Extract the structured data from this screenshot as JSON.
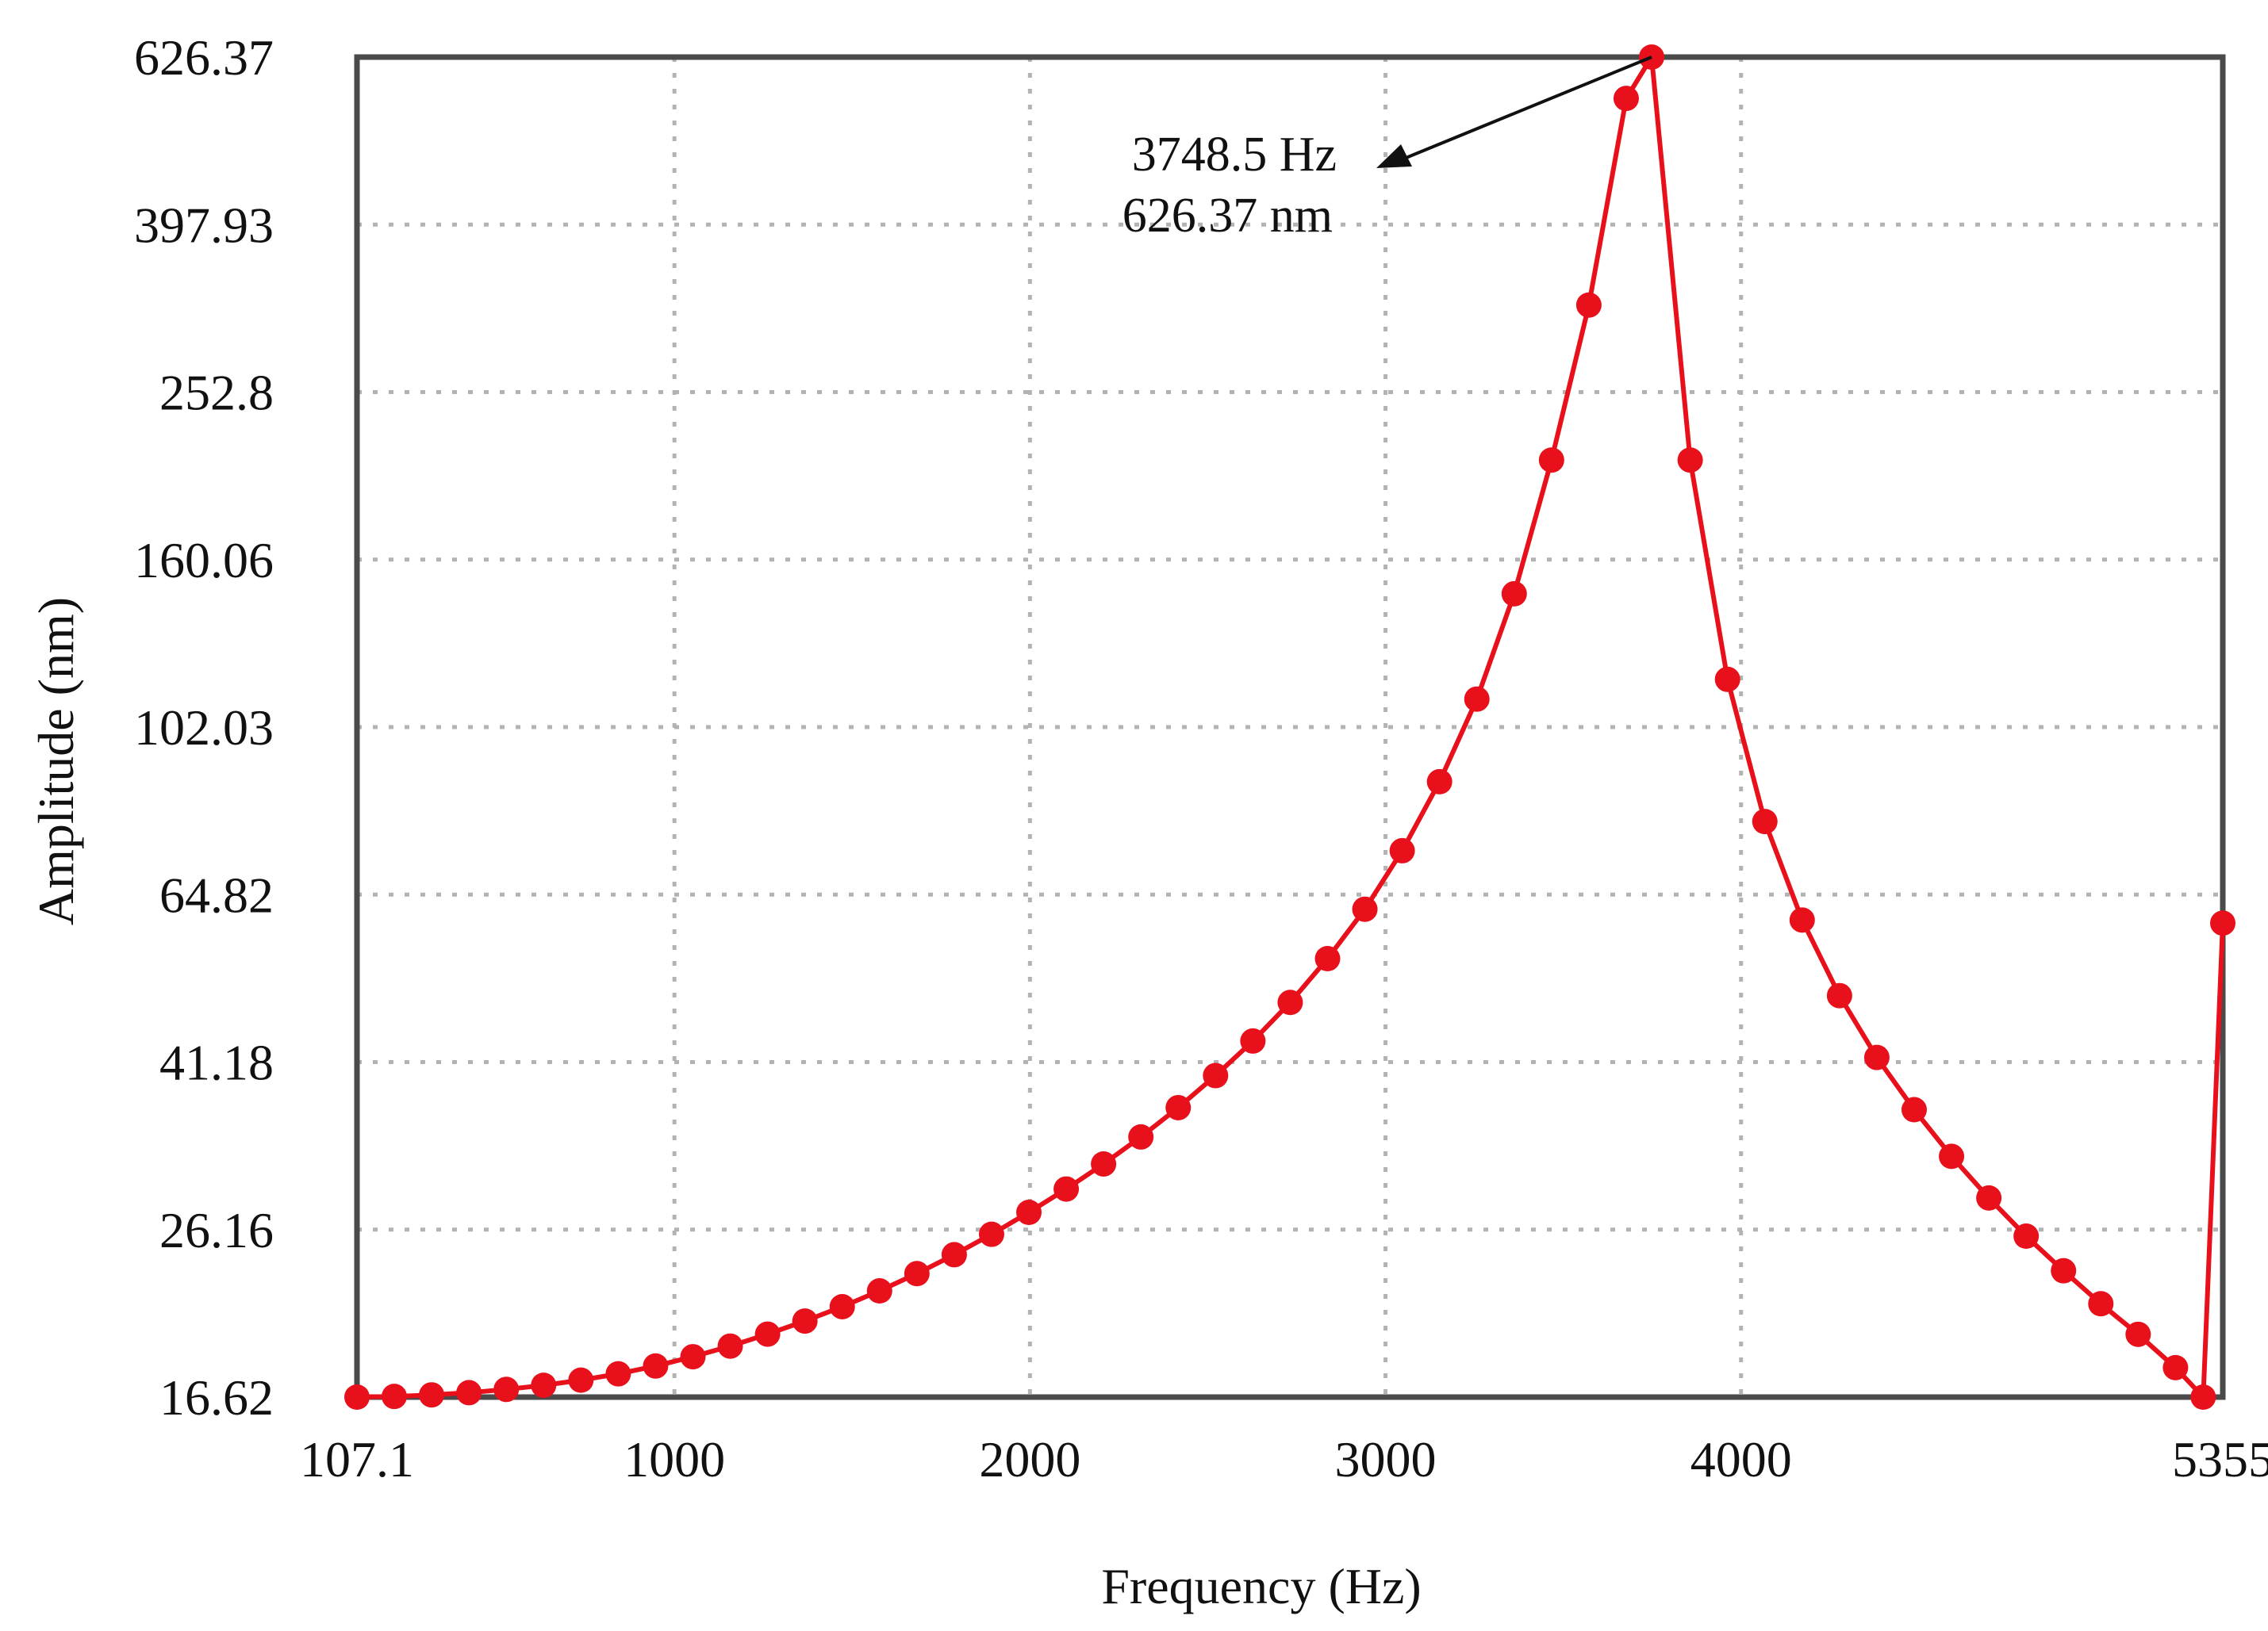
{
  "chart_data": {
    "type": "line",
    "title": "",
    "xlabel": "Frequency (Hz)",
    "ylabel": "Amplitude (nm)",
    "xlim": [
      107.1,
      5355
    ],
    "x_tick_labels": [
      "107.1",
      "1000",
      "2000",
      "3000",
      "4000",
      "5355"
    ],
    "x_tick_values": [
      107.1,
      1000,
      2000,
      3000,
      4000,
      5355
    ],
    "y_tick_labels": [
      "16.62",
      "26.16",
      "41.18",
      "64.82",
      "102.03",
      "160.06",
      "252.8",
      "397.93",
      "626.37"
    ],
    "y_tick_values": [
      16.62,
      26.16,
      41.18,
      64.82,
      102.03,
      160.06,
      252.8,
      397.93,
      626.37
    ],
    "grid": true,
    "series_color": "#e8101b",
    "annotation": {
      "line1": "3748.5 Hz",
      "line2": "626.37 nm",
      "x": 3748.5,
      "y": 626.37
    },
    "series": [
      {
        "name": "Amplitude",
        "x": [
          107.1,
          212,
          317,
          422,
          527,
          632,
          737,
          842,
          947,
          1052,
          1157,
          1262,
          1367,
          1472,
          1577,
          1682,
          1787,
          1892,
          1997,
          2102,
          2207,
          2312,
          2417,
          2522,
          2627,
          2732,
          2837,
          2942,
          3047,
          3152,
          3257,
          3362,
          3467,
          3572,
          3677,
          3748.5,
          3857,
          3962,
          4067,
          4172,
          4277,
          4382,
          4487,
          4592,
          4697,
          4802,
          4907,
          5012,
          5117,
          5222,
          5300,
          5355
        ],
        "values": [
          16.62,
          16.65,
          16.72,
          16.82,
          16.97,
          17.16,
          17.4,
          17.7,
          18.08,
          18.54,
          19.08,
          19.71,
          20.42,
          21.23,
          22.16,
          23.22,
          24.44,
          25.83,
          27.41,
          29.2,
          31.25,
          33.62,
          36.4,
          39.7,
          43.6,
          48.4,
          54.5,
          62.3,
          73.0,
          88.0,
          110.0,
          146.0,
          210.0,
          320.0,
          560.0,
          626.37,
          210.0,
          116.0,
          79.0,
          60.5,
          49.3,
          41.7,
          36.2,
          31.9,
          28.5,
          25.7,
          23.4,
          21.4,
          19.7,
          18.0,
          16.62,
          60.0
        ]
      }
    ]
  }
}
